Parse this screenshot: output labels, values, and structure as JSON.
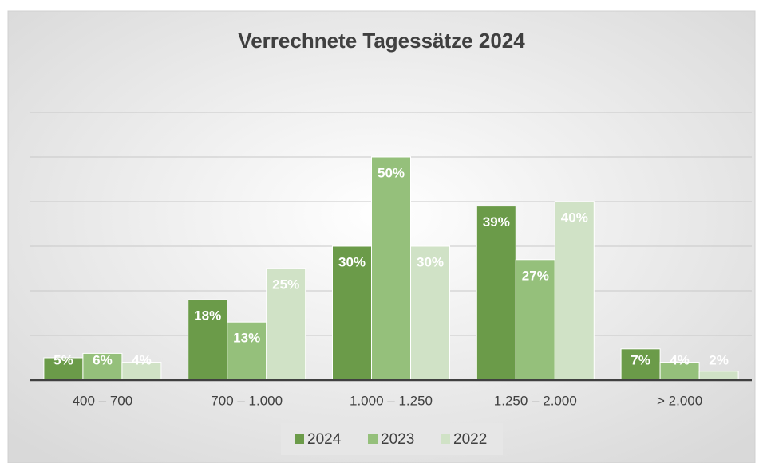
{
  "chart_data": {
    "type": "bar",
    "title": "Verrechnete Tagessätze 2024",
    "categories": [
      "400 – 700",
      "700 – 1.000",
      "1.000 – 1.250",
      "1.250 – 2.000",
      "> 2.000"
    ],
    "series": [
      {
        "name": "2024",
        "color": "#6b9b49",
        "values": [
          5,
          18,
          30,
          39,
          7
        ],
        "value_labels": [
          "5%",
          "18%",
          "30%",
          "39%",
          "7%"
        ]
      },
      {
        "name": "2023",
        "color": "#95c07b",
        "values": [
          6,
          13,
          50,
          27,
          4
        ],
        "value_labels": [
          "6%",
          "13%",
          "50%",
          "27%",
          "4%"
        ]
      },
      {
        "name": "2022",
        "color": "#d0e2c6",
        "values": [
          4,
          25,
          30,
          40,
          2
        ],
        "value_labels": [
          "4%",
          "25%",
          "30%",
          "40%",
          "2%"
        ]
      }
    ],
    "ylim": [
      0,
      60
    ],
    "yticks": [
      0,
      10,
      20,
      30,
      40,
      50,
      60
    ],
    "grid": true,
    "legend": "bottom"
  }
}
